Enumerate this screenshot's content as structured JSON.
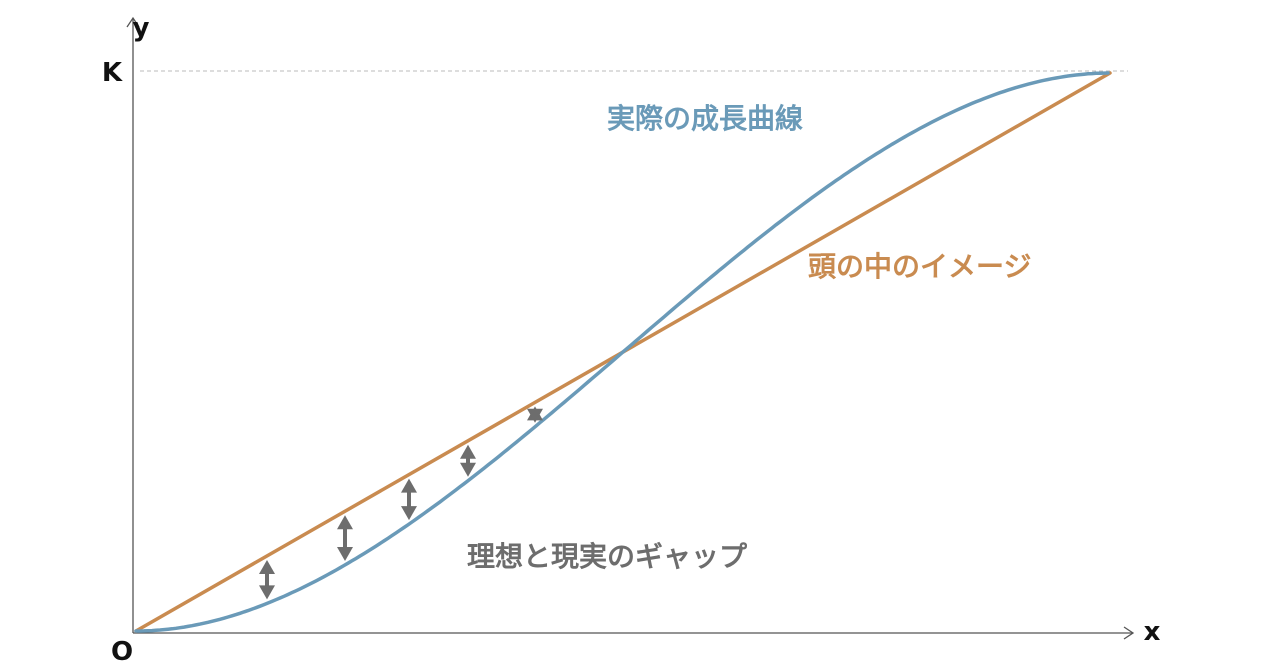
{
  "axes": {
    "x_label": "x",
    "y_label": "y",
    "origin_label": "O",
    "capacity_label": "K"
  },
  "curves": {
    "actual": {
      "label": "実際の成長曲線",
      "color": "#6a9ab8",
      "shape": "logistic"
    },
    "imagined": {
      "label": "頭の中のイメージ",
      "color": "#c98b50",
      "shape": "linear"
    }
  },
  "gap": {
    "label": "理想と現実のギャップ",
    "color": "#6d6d6d"
  },
  "styles": {
    "axis_color": "#555555",
    "guide_color": "#bbbbbb"
  }
}
